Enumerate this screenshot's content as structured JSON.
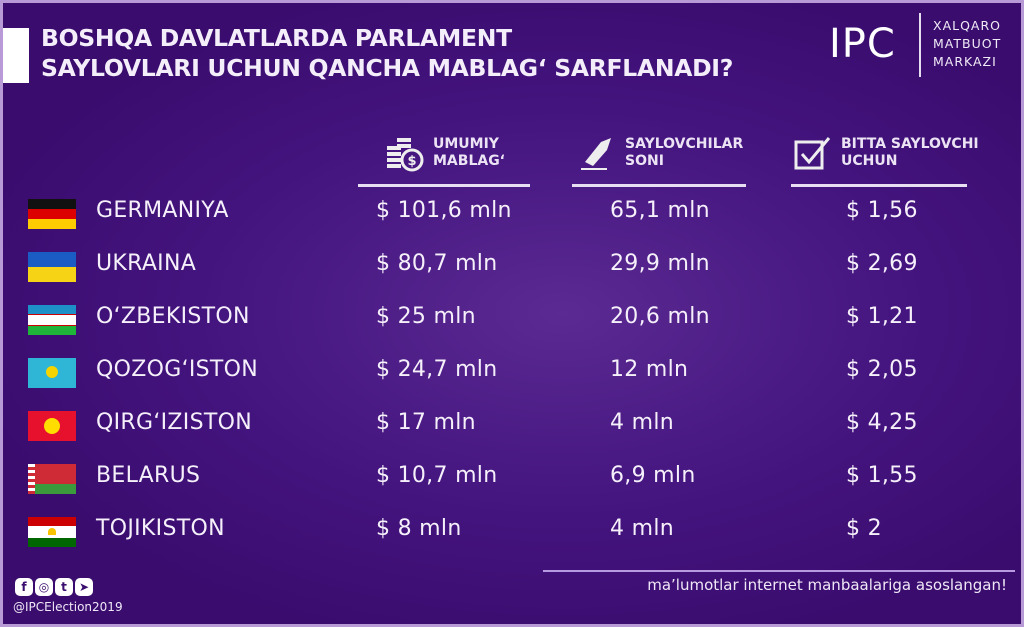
{
  "title": {
    "line1": "BOSHQA DAVLATLARDA PARLAMENT",
    "line2": "SAYLOVLARI UCHUN QANCHA MABLAG‘ SARFLANADI?"
  },
  "logo": {
    "mark": "IPC",
    "line1": "XALQARO",
    "line2": "MATBUOT",
    "line3": "MARKAZI"
  },
  "columns": [
    {
      "line1": "UMUMIY",
      "line2": "MABLAG‘",
      "icon": "coins-dollar-icon"
    },
    {
      "line1": "SAYLOVCHILAR",
      "line2": "SONI",
      "icon": "ballot-hand-icon"
    },
    {
      "line1": "BITTA SAYLOVCHI",
      "line2": "UCHUN",
      "icon": "checkbox-icon"
    }
  ],
  "rows": [
    {
      "country": "GERMANIYA",
      "flag": "germany",
      "total": "$ 101,6 mln",
      "voters": "65,1 mln",
      "per_voter": "$ 1,56"
    },
    {
      "country": "UKRAINA",
      "flag": "ukraine",
      "total": "$ 80,7 mln",
      "voters": "29,9 mln",
      "per_voter": "$ 2,69"
    },
    {
      "country": "O‘ZBEKISTON",
      "flag": "uzbekistan",
      "total": "$ 25 mln",
      "voters": "20,6 mln",
      "per_voter": "$ 1,21"
    },
    {
      "country": "QOZOG‘ISTON",
      "flag": "kazakhstan",
      "total": "$ 24,7 mln",
      "voters": "12 mln",
      "per_voter": "$ 2,05"
    },
    {
      "country": "QIRG‘IZISTON",
      "flag": "kyrgyzstan",
      "total": "$ 17 mln",
      "voters": "4 mln",
      "per_voter": "$ 4,25"
    },
    {
      "country": "BELARUS",
      "flag": "belarus",
      "total": "$ 10,7 mln",
      "voters": "6,9 mln",
      "per_voter": "$ 1,55"
    },
    {
      "country": "TOJIKISTON",
      "flag": "tajikistan",
      "total": "$ 8 mln",
      "voters": "4 mln",
      "per_voter": "$ 2"
    }
  ],
  "footer": {
    "note": "ma’lumotlar internet manbaalariga asoslangan!",
    "handle": "@IPCElection2019",
    "social": [
      "f",
      "◎",
      "t",
      "➤"
    ]
  },
  "colors": {
    "background": "#451580",
    "border": "#b89bd6",
    "text": "#f5f0fa"
  }
}
